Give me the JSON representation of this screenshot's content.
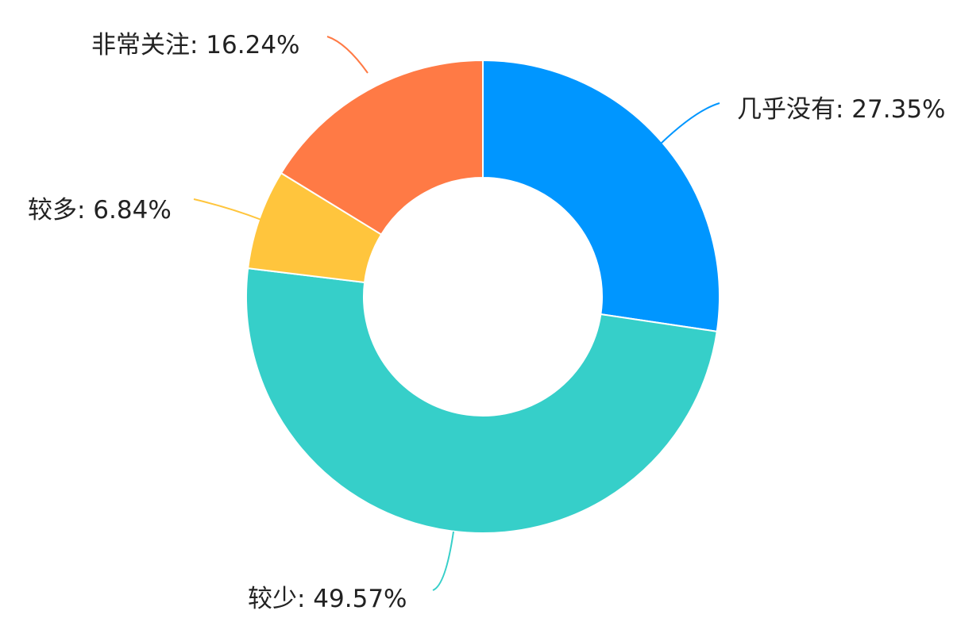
{
  "chart_data": {
    "type": "pie",
    "variant": "donut",
    "title": "",
    "slices": [
      {
        "name": "几乎没有",
        "value": 27.35,
        "label": "几乎没有: 27.35%",
        "color": "#0096FF"
      },
      {
        "name": "较少",
        "value": 49.57,
        "label": "较少: 49.57%",
        "color": "#36CFC9"
      },
      {
        "name": "较多",
        "value": 6.84,
        "label": "较多: 6.84%",
        "color": "#FFC53D"
      },
      {
        "name": "非常关注",
        "value": 16.24,
        "label": "非常关注: 16.24%",
        "color": "#FF7A45"
      }
    ],
    "start_angle": "top",
    "direction": "clockwise",
    "legend": "none"
  }
}
